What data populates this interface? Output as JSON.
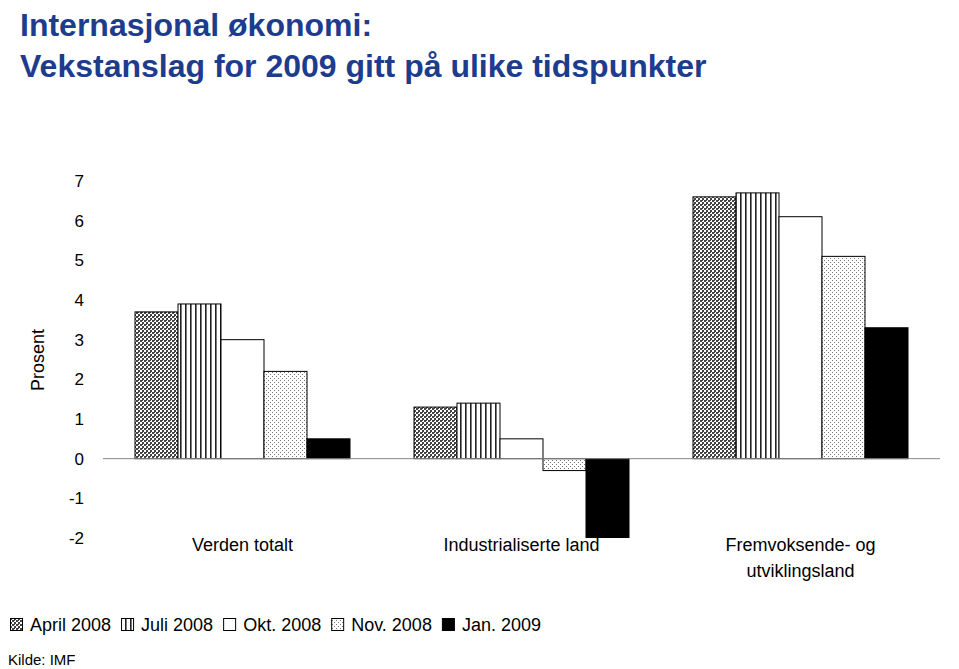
{
  "chart_data": {
    "type": "bar",
    "title": "Internasjonal økonomi:",
    "subtitle": "Vekstanslag for 2009 gitt på ulike tidspunkter",
    "y_label": "Prosent",
    "source": "Kilde: IMF",
    "categories": [
      "Verden totalt",
      "Industrialiserte land",
      "Fremvoksende- og utviklingsland"
    ],
    "series": [
      {
        "name": "April 2008",
        "color": "#444444",
        "values": [
          3.7,
          1.3,
          6.6
        ]
      },
      {
        "name": "Juli 2008",
        "color": "#222222",
        "values": [
          3.9,
          1.4,
          6.7
        ]
      },
      {
        "name": "Okt. 2008",
        "color": "#ffffff",
        "values": [
          3.0,
          0.5,
          6.1
        ]
      },
      {
        "name": "Nov. 2008",
        "color": "#777777",
        "values": [
          2.2,
          -0.3,
          5.1
        ]
      },
      {
        "name": "Jan. 2009",
        "color": "#000000",
        "values": [
          0.5,
          -2.0,
          3.3
        ]
      }
    ],
    "ylim": [
      -2,
      7
    ],
    "yticks": [
      -2,
      -1,
      0,
      1,
      2,
      3,
      4,
      5,
      6,
      7
    ],
    "grid": false,
    "legend": "bottom"
  }
}
